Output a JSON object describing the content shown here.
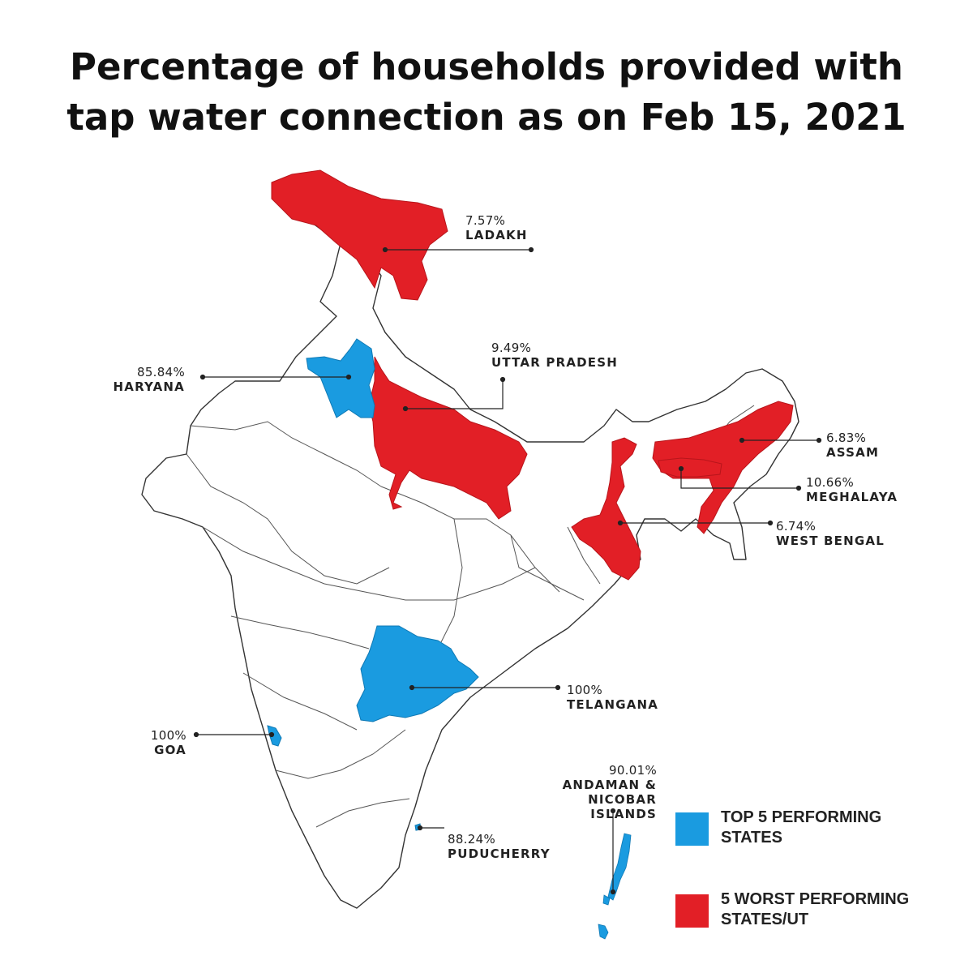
{
  "title": {
    "line1": "Percentage of households provided with",
    "line2": "tap water connection as on Feb 15, 2021"
  },
  "colors": {
    "top": "#1a9be0",
    "worst": "#e21f26",
    "outline": "#333333"
  },
  "regions": [
    {
      "name": "LADAKH",
      "value": "7.57%",
      "category": "worst"
    },
    {
      "name": "UTTAR PRADESH",
      "value": "9.49%",
      "category": "worst"
    },
    {
      "name": "HARYANA",
      "value": "85.84%",
      "category": "top"
    },
    {
      "name": "ASSAM",
      "value": "6.83%",
      "category": "worst"
    },
    {
      "name": "MEGHALAYA",
      "value": "10.66%",
      "category": "worst"
    },
    {
      "name": "WEST BENGAL",
      "value": "6.74%",
      "category": "worst"
    },
    {
      "name": "TELANGANA",
      "value": "100%",
      "category": "top"
    },
    {
      "name": "GOA",
      "value": "100%",
      "category": "top"
    },
    {
      "name": "ANDAMAN & NICOBAR ISLANDS",
      "name_line1": "ANDAMAN &",
      "name_line2": "NICOBAR ISLANDS",
      "value": "90.01%",
      "category": "top"
    },
    {
      "name": "PUDUCHERRY",
      "value": "88.24%",
      "category": "top"
    }
  ],
  "legend": {
    "top_line1": "TOP 5 PERFORMING",
    "top_line2": "STATES",
    "worst_line1": "5 WORST PERFORMING",
    "worst_line2": "STATES/UT"
  }
}
